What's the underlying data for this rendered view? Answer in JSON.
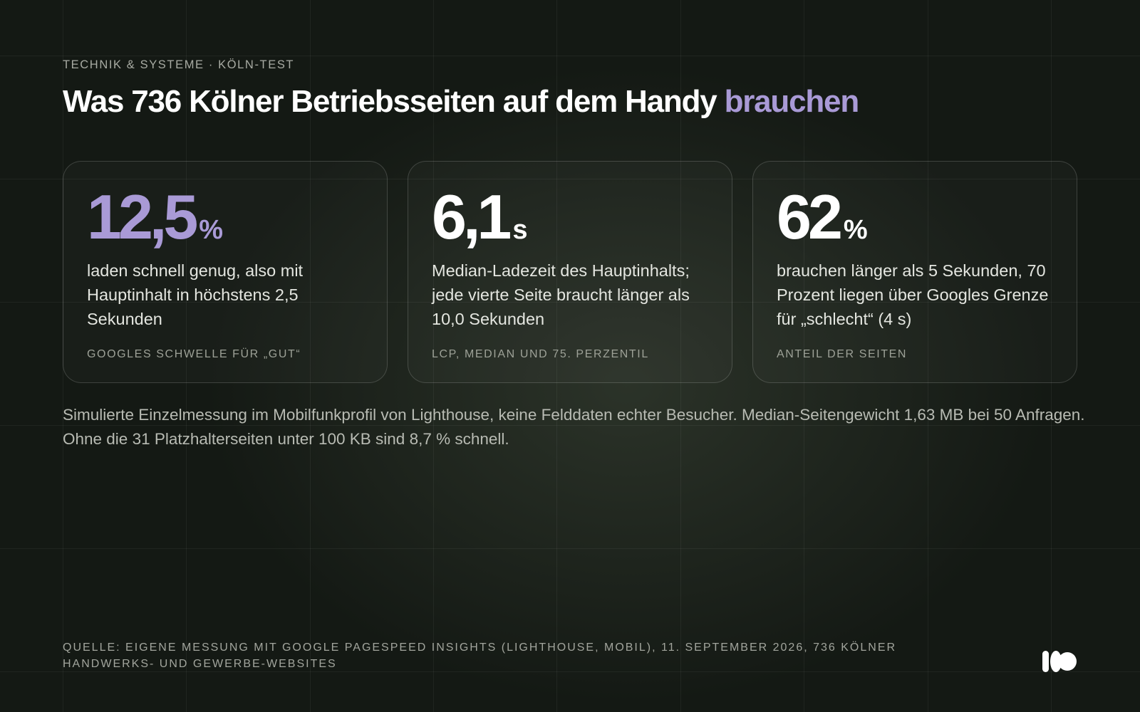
{
  "header": {
    "eyebrow": "TECHNIK & SYSTEME · KÖLN-TEST",
    "title_main": "Was 736 Kölner Betriebsseiten auf dem Handy",
    "title_accent": "brauchen"
  },
  "cards": [
    {
      "value": "12,5",
      "unit": "%",
      "description": "laden schnell genug, also mit Hauptinhalt in höchstens 2,5 Sekunden",
      "label": "GOOGLES SCHWELLE FÜR „GUT“"
    },
    {
      "value": "6,1",
      "unit": "s",
      "description": "Median-Ladezeit des Hauptinhalts; jede vierte Seite braucht länger als 10,0 Sekunden",
      "label": "LCP, MEDIAN UND 75. PERZENTIL"
    },
    {
      "value": "62",
      "unit": "%",
      "description": "brauchen länger als 5 Sekunden, 70 Prozent liegen über Googles Grenze für „schlecht“ (4 s)",
      "label": "ANTEIL DER SEITEN"
    }
  ],
  "note": "Simulierte Einzelmessung im Mobilfunkprofil von Lighthouse, keine Felddaten echter Besucher. Median-Seitengewicht 1,63 MB bei 50 Anfragen. Ohne die 31 Platzhalterseiten unter 100 KB sind 8,7 % schnell.",
  "source": "QUELLE: EIGENE MESSUNG MIT GOOGLE PAGESPEED INSIGHTS (LIGHTHOUSE, MOBIL), 11. SEPTEMBER 2026, 736 KÖLNER HANDWERKS- UND GEWERBE-WEBSITES",
  "logo_icon": "brand-logo-icon",
  "colors": {
    "background": "#141914",
    "accent": "#a99ad6",
    "text": "#ffffff"
  }
}
